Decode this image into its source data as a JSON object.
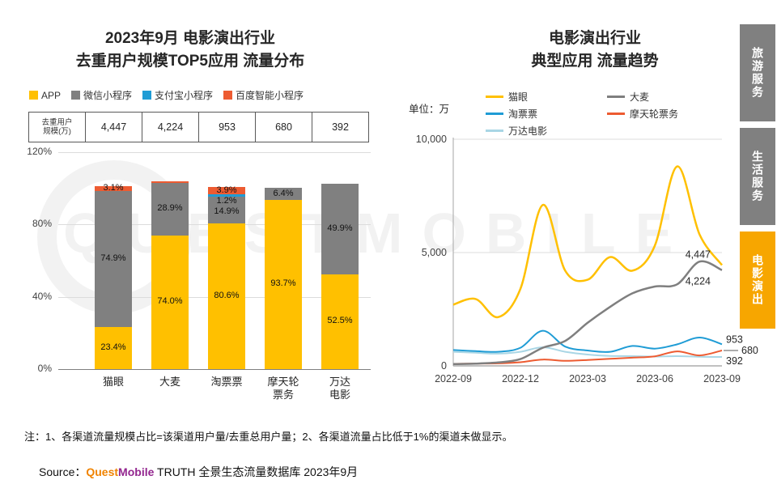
{
  "watermark": {
    "text": "QUESTMOBILE"
  },
  "left_chart": {
    "title1": "2023年9月 电影演出行业",
    "title2": "去重用户规模TOP5应用 流量分布",
    "row_header_line1": "去重用户",
    "row_header_line2": "规模(万)"
  },
  "right_chart": {
    "title1": "电影演出行业",
    "title2": "典型应用 流量趋势",
    "unit": "单位：万"
  },
  "sidebar": {
    "tabs": [
      {
        "label": "旅游服务",
        "active": false
      },
      {
        "label": "生活服务",
        "active": false
      },
      {
        "label": "电影演出",
        "active": true
      }
    ]
  },
  "footer": {
    "note": "注：1、各渠道流量规模占比=该渠道用户量/去重总用户量；2、各渠道流量占比低于1%的渠道未做显示。",
    "source_label": "Source：",
    "brand_part1": "Quest",
    "brand_part2": "Mobile",
    "source_rest": " TRUTH 全景生态流量数据库 2023年9月"
  },
  "chart_data": [
    {
      "type": "bar",
      "stacked": true,
      "title": "2023年9月 电影演出行业 去重用户规模TOP5应用 流量分布",
      "categories": [
        "猫眼",
        "大麦",
        "淘票票",
        "摩天轮票务",
        "万达电影"
      ],
      "category_lines": [
        [
          "猫眼"
        ],
        [
          "大麦"
        ],
        [
          "淘票票"
        ],
        [
          "摩天轮",
          "票务"
        ],
        [
          "万达",
          "电影"
        ]
      ],
      "dedup_users_wan": [
        "4,447",
        "4,224",
        "953",
        "680",
        "392"
      ],
      "ylim": [
        0,
        120
      ],
      "y_ticks": [
        {
          "value": 0,
          "label": "0%"
        },
        {
          "value": 40,
          "label": "40%"
        },
        {
          "value": 80,
          "label": "80%"
        },
        {
          "value": 120,
          "label": "120%"
        }
      ],
      "series": [
        {
          "name": "APP",
          "color": "#FFC000",
          "values": [
            23.4,
            74.0,
            80.6,
            93.7,
            52.5
          ],
          "labels": [
            "23.4%",
            "74.0%",
            "80.6%",
            "93.7%",
            "52.5%"
          ]
        },
        {
          "name": "微信小程序",
          "color": "#808080",
          "values": [
            74.9,
            28.9,
            14.9,
            6.4,
            49.9
          ],
          "labels": [
            "74.9%",
            "28.9%",
            "14.9%",
            "6.4%",
            "49.9%"
          ]
        },
        {
          "name": "支付宝小程序",
          "color": "#1F9CD5",
          "values": [
            0,
            0,
            1.2,
            0,
            0
          ],
          "labels": [
            "",
            "",
            "1.2%",
            "",
            ""
          ]
        },
        {
          "name": "百度智能小程序",
          "color": "#ED5B31",
          "values": [
            3.1,
            1.0,
            3.9,
            0,
            0
          ],
          "labels": [
            "3.1%",
            "",
            "3.9%",
            "",
            ""
          ]
        }
      ]
    },
    {
      "type": "line",
      "title": "电影演出行业 典型应用 流量趋势",
      "unit": "万",
      "x": [
        "2022-09",
        "2022-10",
        "2022-11",
        "2022-12",
        "2023-01",
        "2023-02",
        "2023-03",
        "2023-04",
        "2023-05",
        "2023-06",
        "2023-07",
        "2023-08",
        "2023-09"
      ],
      "x_tick_labels": [
        "2022-09",
        "2022-12",
        "2023-03",
        "2023-06",
        "2023-09"
      ],
      "ylim": [
        0,
        10000
      ],
      "y_ticks": [
        {
          "value": 0,
          "label": "0"
        },
        {
          "value": 5000,
          "label": "5,000"
        },
        {
          "value": 10000,
          "label": "10,000"
        }
      ],
      "series": [
        {
          "name": "猫眼",
          "color": "#FFC000",
          "width": 2.5,
          "end_label": "4,447",
          "values": [
            2700,
            2950,
            2150,
            3400,
            7100,
            4200,
            3800,
            4800,
            4200,
            5300,
            8800,
            5800,
            4447
          ]
        },
        {
          "name": "大麦",
          "color": "#7F7F7F",
          "width": 2.5,
          "end_label": "4,224",
          "values": [
            80,
            100,
            150,
            300,
            800,
            1100,
            1900,
            2600,
            3200,
            3500,
            3600,
            4600,
            4224
          ]
        },
        {
          "name": "淘票票",
          "color": "#1F9CD5",
          "width": 2,
          "end_label": "953",
          "values": [
            700,
            650,
            620,
            800,
            1550,
            850,
            680,
            620,
            880,
            760,
            950,
            1250,
            953
          ]
        },
        {
          "name": "摩天轮票务",
          "color": "#ED5B31",
          "width": 2,
          "end_label": "680",
          "values": [
            90,
            100,
            110,
            160,
            280,
            220,
            260,
            310,
            360,
            420,
            640,
            460,
            680
          ]
        },
        {
          "name": "万达电影",
          "color": "#A9D6E5",
          "width": 2,
          "end_label": "392",
          "values": [
            620,
            580,
            540,
            620,
            820,
            620,
            500,
            440,
            430,
            410,
            430,
            400,
            392
          ]
        }
      ]
    }
  ]
}
